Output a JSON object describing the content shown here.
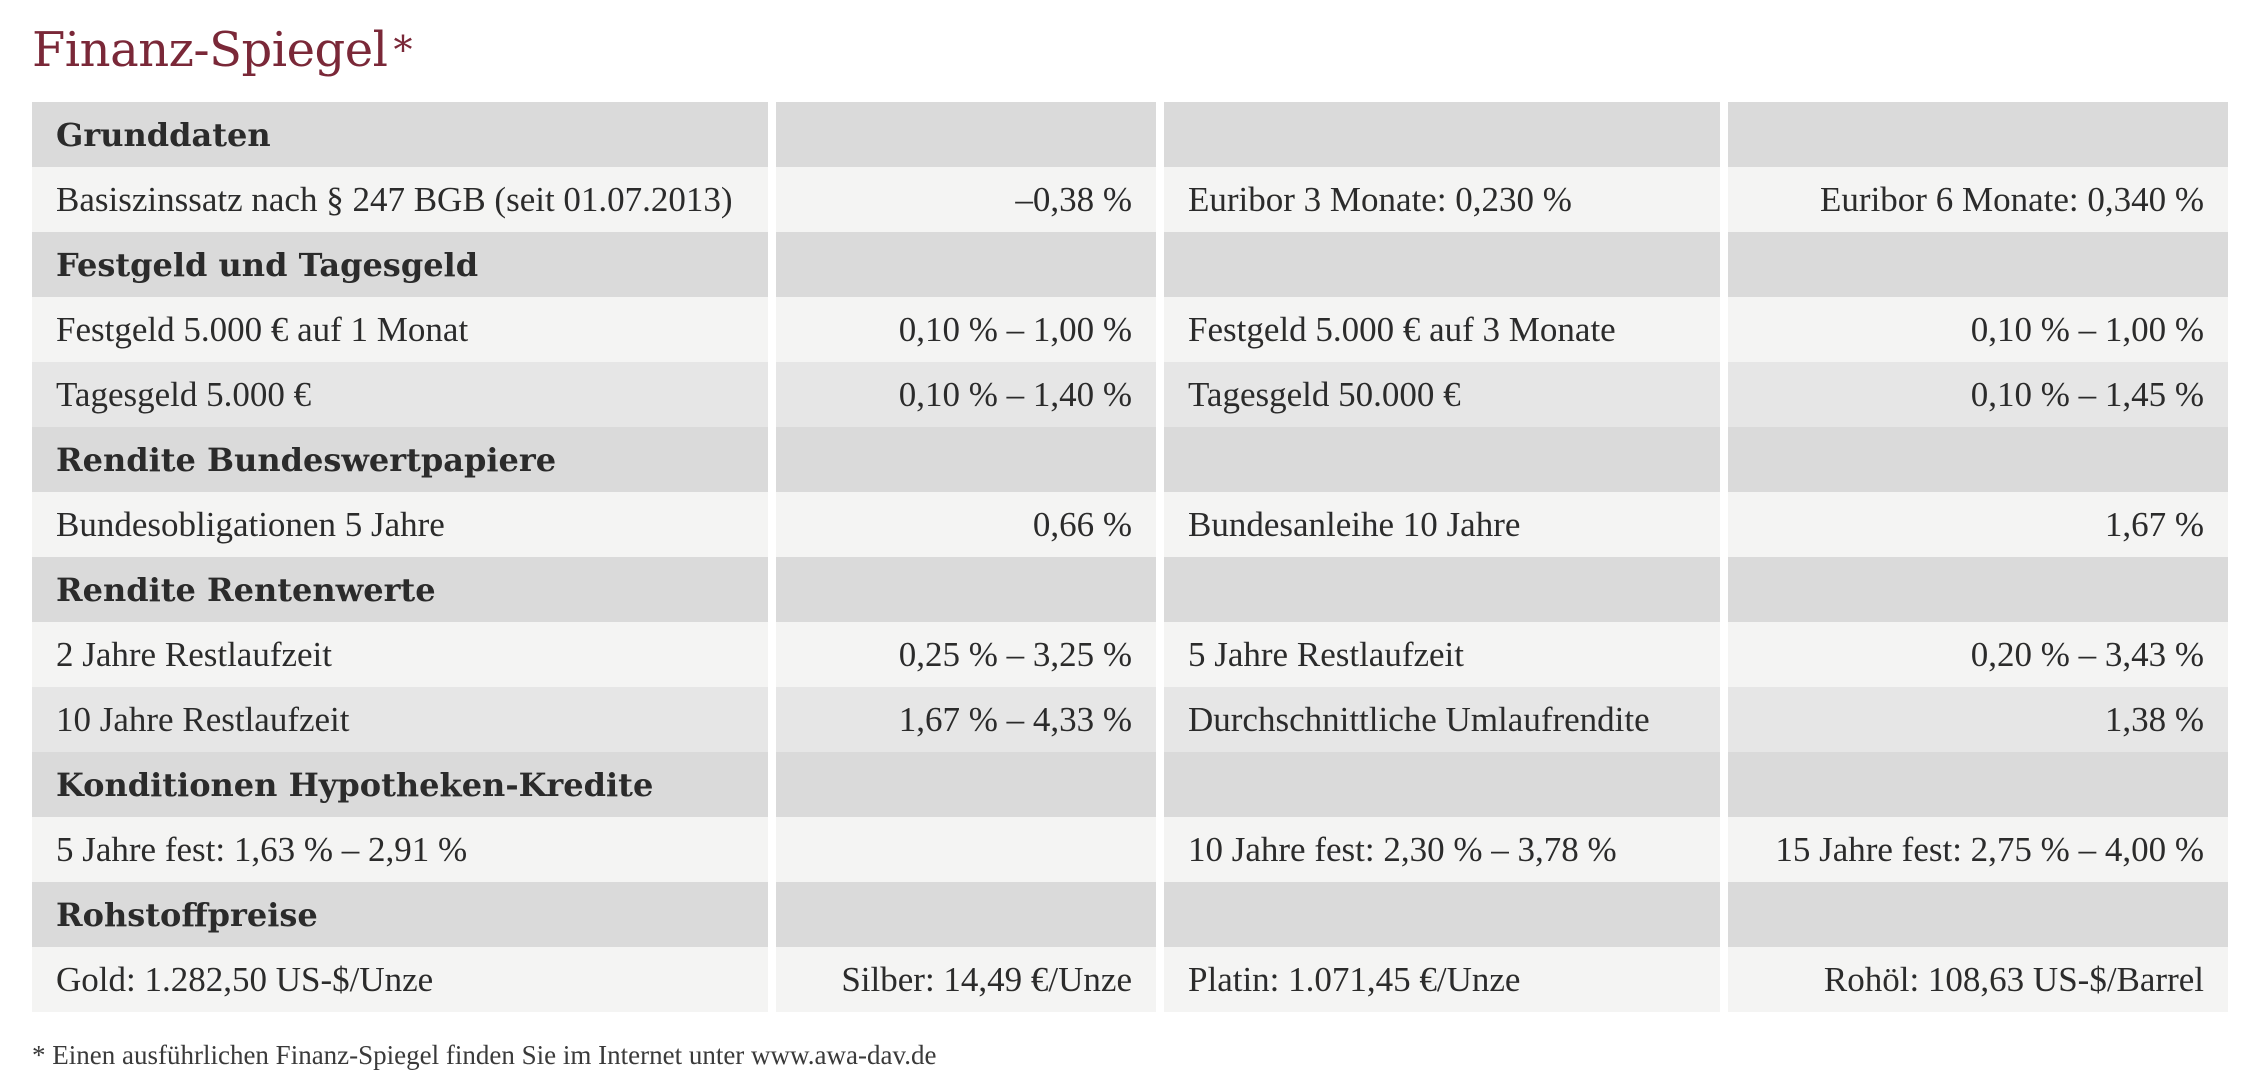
{
  "title": "Finanz-Spiegel",
  "title_mark": "*",
  "sections": [
    {
      "heading": "Grunddaten",
      "rows": [
        {
          "label1": "Basiszinssatz nach § 247 BGB (seit 01.07.2013)",
          "value1": "–0,38 %",
          "label2": "Euribor 3 Monate: 0,230 %",
          "value2": "Euribor 6 Monate: 0,340 %"
        }
      ]
    },
    {
      "heading": "Festgeld und Tagesgeld",
      "rows": [
        {
          "label1": "Festgeld 5.000 € auf 1 Monat",
          "value1": "0,10 % – 1,00 %",
          "label2": "Festgeld 5.000 € auf 3 Monate",
          "value2": "0,10 % – 1,00 %"
        },
        {
          "label1": "Tagesgeld 5.000 €",
          "value1": "0,10 % – 1,40 %",
          "label2": "Tagesgeld 50.000 €",
          "value2": "0,10 % – 1,45 %"
        }
      ]
    },
    {
      "heading": "Rendite Bundeswertpapiere",
      "rows": [
        {
          "label1": "Bundesobligationen 5 Jahre",
          "value1": "0,66 %",
          "label2": "Bundesanleihe 10 Jahre",
          "value2": "1,67 %"
        }
      ]
    },
    {
      "heading": "Rendite Rentenwerte",
      "rows": [
        {
          "label1": "2 Jahre Restlaufzeit",
          "value1": "0,25 % – 3,25 %",
          "label2": "5 Jahre Restlaufzeit",
          "value2": "0,20 % – 3,43 %"
        },
        {
          "label1": "10 Jahre Restlaufzeit",
          "value1": "1,67 % – 4,33 %",
          "label2": "Durchschnittliche Umlaufrendite",
          "value2": "1,38 %"
        }
      ]
    },
    {
      "heading": "Konditionen Hypotheken-Kredite",
      "rows": [
        {
          "label1": "5 Jahre fest: 1,63 % – 2,91 %",
          "value1": "",
          "label2": "10 Jahre fest: 2,30 % – 3,78 %",
          "value2": "15 Jahre fest: 2,75 % – 4,00 %"
        }
      ]
    },
    {
      "heading": "Rohstoffpreise",
      "rows": [
        {
          "label1": "Gold: 1.282,50 US-$/Unze",
          "value1": "Silber: 14,49 €/Unze",
          "label2": "Platin: 1.071,45 €/Unze",
          "value2": "Rohöl: 108,63 US-$/Barrel"
        }
      ]
    }
  ],
  "footnote": "* Einen ausführlichen Finanz-Spiegel finden Sie im Internet unter www.awa-dav.de",
  "colors": {
    "title": "#7a2838",
    "section_bg": "#dadada",
    "row_light": "#f4f4f3",
    "row_dark": "#e6e6e6"
  }
}
